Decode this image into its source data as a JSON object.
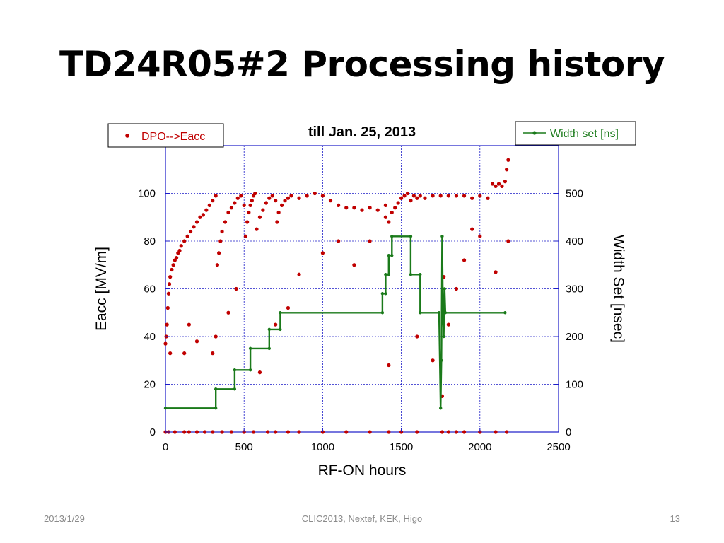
{
  "slide": {
    "title": "TD24R05#2 Processing history",
    "footer_left": "2013/1/29",
    "footer_center": "CLIC2013, Nextef, KEK,  Higo",
    "footer_right": "13"
  },
  "colors": {
    "eacc": "#c00000",
    "width": "#1a7a1a",
    "grid": "#1c1cc8",
    "axis": "#1c1cc8"
  },
  "chart_data": {
    "type": "scatter",
    "title": "till Jan. 25, 2013",
    "xlabel": "RF-ON hours",
    "ylabel": "Eacc [MV/m]",
    "y2label": "Width Set [nsec]",
    "xlim": [
      0,
      2500
    ],
    "ylim": [
      0,
      120
    ],
    "y2lim": [
      0,
      600
    ],
    "xticks": [
      0,
      500,
      1000,
      1500,
      2000,
      2500
    ],
    "yticks": [
      0,
      20,
      40,
      60,
      80,
      100
    ],
    "y2ticks": [
      0,
      100,
      200,
      300,
      400,
      500
    ],
    "grid": true,
    "series": [
      {
        "name": "DPO-->Eacc",
        "axis": "left",
        "style": "points",
        "legend_position": "top-left",
        "points": [
          [
            0,
            37
          ],
          [
            5,
            40
          ],
          [
            10,
            45
          ],
          [
            15,
            52
          ],
          [
            20,
            58
          ],
          [
            25,
            62
          ],
          [
            30,
            65
          ],
          [
            40,
            68
          ],
          [
            50,
            70
          ],
          [
            60,
            72
          ],
          [
            70,
            73
          ],
          [
            80,
            75
          ],
          [
            90,
            76
          ],
          [
            100,
            78
          ],
          [
            120,
            80
          ],
          [
            140,
            82
          ],
          [
            160,
            84
          ],
          [
            180,
            86
          ],
          [
            200,
            88
          ],
          [
            220,
            90
          ],
          [
            240,
            91
          ],
          [
            260,
            93
          ],
          [
            280,
            95
          ],
          [
            300,
            97
          ],
          [
            320,
            99
          ],
          [
            330,
            70
          ],
          [
            340,
            75
          ],
          [
            350,
            80
          ],
          [
            360,
            84
          ],
          [
            380,
            88
          ],
          [
            400,
            92
          ],
          [
            420,
            94
          ],
          [
            440,
            96
          ],
          [
            460,
            98
          ],
          [
            480,
            99
          ],
          [
            500,
            95
          ],
          [
            510,
            82
          ],
          [
            520,
            88
          ],
          [
            530,
            92
          ],
          [
            540,
            95
          ],
          [
            550,
            97
          ],
          [
            560,
            99
          ],
          [
            570,
            100
          ],
          [
            580,
            85
          ],
          [
            600,
            90
          ],
          [
            620,
            93
          ],
          [
            640,
            96
          ],
          [
            660,
            98
          ],
          [
            680,
            99
          ],
          [
            700,
            97
          ],
          [
            710,
            88
          ],
          [
            720,
            92
          ],
          [
            740,
            95
          ],
          [
            760,
            97
          ],
          [
            780,
            98
          ],
          [
            800,
            99
          ],
          [
            850,
            98
          ],
          [
            900,
            99
          ],
          [
            950,
            100
          ],
          [
            1000,
            99
          ],
          [
            1050,
            97
          ],
          [
            1100,
            95
          ],
          [
            1150,
            94
          ],
          [
            1200,
            94
          ],
          [
            1250,
            93
          ],
          [
            1300,
            94
          ],
          [
            1350,
            93
          ],
          [
            1400,
            95
          ],
          [
            1420,
            88
          ],
          [
            1440,
            92
          ],
          [
            1460,
            94
          ],
          [
            1480,
            96
          ],
          [
            1500,
            98
          ],
          [
            1520,
            99
          ],
          [
            1540,
            100
          ],
          [
            1560,
            97
          ],
          [
            1580,
            99
          ],
          [
            1600,
            98
          ],
          [
            1620,
            99
          ],
          [
            1650,
            98
          ],
          [
            1700,
            99
          ],
          [
            1750,
            99
          ],
          [
            1800,
            99
          ],
          [
            1850,
            99
          ],
          [
            1900,
            99
          ],
          [
            1950,
            98
          ],
          [
            2000,
            99
          ],
          [
            2050,
            98
          ],
          [
            2080,
            104
          ],
          [
            2100,
            103
          ],
          [
            2120,
            104
          ],
          [
            2140,
            103
          ],
          [
            2160,
            105
          ],
          [
            2170,
            110
          ],
          [
            2180,
            114
          ],
          [
            30,
            33
          ],
          [
            120,
            33
          ],
          [
            150,
            45
          ],
          [
            200,
            38
          ],
          [
            300,
            33
          ],
          [
            320,
            40
          ],
          [
            400,
            50
          ],
          [
            450,
            60
          ],
          [
            600,
            25
          ],
          [
            700,
            45
          ],
          [
            780,
            52
          ],
          [
            850,
            66
          ],
          [
            1000,
            75
          ],
          [
            1100,
            80
          ],
          [
            1200,
            70
          ],
          [
            1300,
            80
          ],
          [
            1400,
            90
          ],
          [
            1420,
            28
          ],
          [
            1600,
            40
          ],
          [
            1700,
            30
          ],
          [
            1760,
            15
          ],
          [
            1770,
            65
          ],
          [
            1800,
            45
          ],
          [
            1850,
            60
          ],
          [
            1900,
            72
          ],
          [
            1950,
            85
          ],
          [
            2000,
            82
          ],
          [
            2100,
            67
          ],
          [
            2180,
            80
          ],
          [
            0,
            0
          ],
          [
            20,
            0
          ],
          [
            60,
            0
          ],
          [
            120,
            0
          ],
          [
            150,
            0
          ],
          [
            200,
            0
          ],
          [
            250,
            0
          ],
          [
            300,
            0
          ],
          [
            360,
            0
          ],
          [
            420,
            0
          ],
          [
            500,
            0
          ],
          [
            560,
            0
          ],
          [
            650,
            0
          ],
          [
            700,
            0
          ],
          [
            780,
            0
          ],
          [
            850,
            0
          ],
          [
            1000,
            0
          ],
          [
            1150,
            0
          ],
          [
            1300,
            0
          ],
          [
            1420,
            0
          ],
          [
            1500,
            0
          ],
          [
            1600,
            0
          ],
          [
            1760,
            0
          ],
          [
            1800,
            0
          ],
          [
            1850,
            0
          ],
          [
            1900,
            0
          ],
          [
            2000,
            0
          ],
          [
            2100,
            0
          ],
          [
            2170,
            0
          ]
        ]
      },
      {
        "name": "Width set [ns]",
        "axis": "right",
        "style": "step",
        "legend_position": "top-right",
        "points": [
          [
            0,
            50
          ],
          [
            320,
            50
          ],
          [
            320,
            90
          ],
          [
            440,
            90
          ],
          [
            440,
            130
          ],
          [
            540,
            130
          ],
          [
            540,
            175
          ],
          [
            660,
            175
          ],
          [
            660,
            215
          ],
          [
            730,
            215
          ],
          [
            730,
            250
          ],
          [
            1380,
            250
          ],
          [
            1380,
            290
          ],
          [
            1400,
            290
          ],
          [
            1400,
            330
          ],
          [
            1420,
            330
          ],
          [
            1420,
            370
          ],
          [
            1440,
            370
          ],
          [
            1440,
            410
          ],
          [
            1560,
            410
          ],
          [
            1560,
            330
          ],
          [
            1620,
            330
          ],
          [
            1620,
            250
          ],
          [
            1740,
            250
          ],
          [
            1750,
            50
          ],
          [
            1755,
            150
          ],
          [
            1760,
            410
          ],
          [
            1765,
            250
          ],
          [
            1770,
            200
          ],
          [
            1775,
            300
          ],
          [
            1780,
            250
          ],
          [
            2160,
            250
          ]
        ]
      }
    ]
  }
}
